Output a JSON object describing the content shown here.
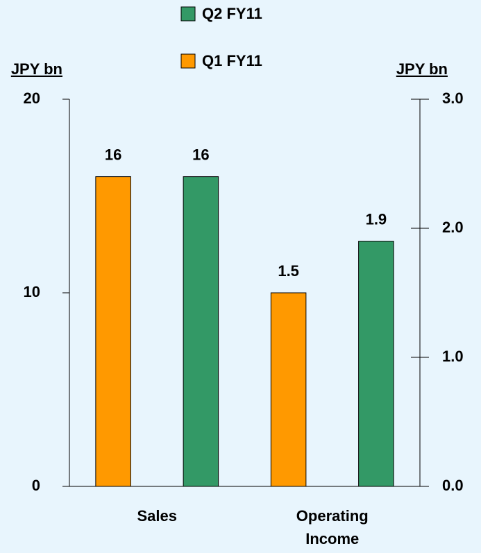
{
  "chart_data": {
    "type": "bar",
    "categories": [
      "Sales",
      "Operating Income"
    ],
    "category_axes": [
      "y",
      "y2"
    ],
    "series": [
      {
        "name": "Q1 FY11",
        "color": "#ff9900",
        "values": [
          16,
          1.5
        ]
      },
      {
        "name": "Q2 FY11",
        "color": "#339966",
        "values": [
          16,
          1.9
        ]
      }
    ],
    "ylabel": "JPY bn",
    "y2label": "JPY bn",
    "ylim": [
      0,
      20
    ],
    "yticks": [
      0,
      10,
      20
    ],
    "y2lim": [
      0,
      3
    ],
    "y2ticks": [
      {
        "value": 0,
        "label": "0.0"
      },
      {
        "value": 1,
        "label": "1.0"
      },
      {
        "value": 2,
        "label": "2.0"
      },
      {
        "value": 3,
        "label": "3.0"
      }
    ],
    "data_labels": true,
    "legend": "top"
  }
}
